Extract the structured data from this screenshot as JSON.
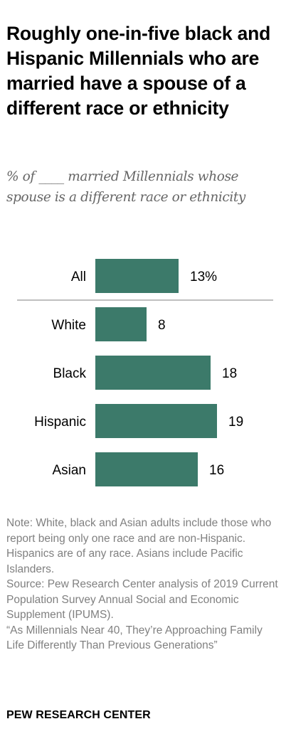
{
  "title": "Roughly one-in-five black and Hispanic Millennials who are married have a spouse of a different race or ethnicity",
  "subtitle": "% of ____ married Millennials whose spouse is a different race or ethnicity",
  "note": "Note: White, black and Asian adults include those who report being only one race and are non-Hispanic. Hispanics are of any race. Asians include Pacific Islanders.",
  "source": "Source: Pew Research Center analysis of 2019 Current Population Survey Annual Social and Economic Supplement (IPUMS).",
  "report": "“As Millennials Near 40, They’re Approaching Family Life Differently Than Previous Generations”",
  "brand": "PEW RESEARCH CENTER",
  "colors": {
    "bar": "#3c7a6a",
    "divider": "#999999"
  },
  "chart_data": {
    "type": "bar",
    "orientation": "horizontal",
    "categories": [
      "All",
      "White",
      "Black",
      "Hispanic",
      "Asian"
    ],
    "values": [
      13,
      8,
      18,
      19,
      16
    ],
    "value_labels": [
      "13%",
      "8",
      "18",
      "19",
      "16"
    ],
    "divider_after": "All",
    "xlim": [
      0,
      25
    ],
    "grid": false,
    "legend": "none"
  }
}
